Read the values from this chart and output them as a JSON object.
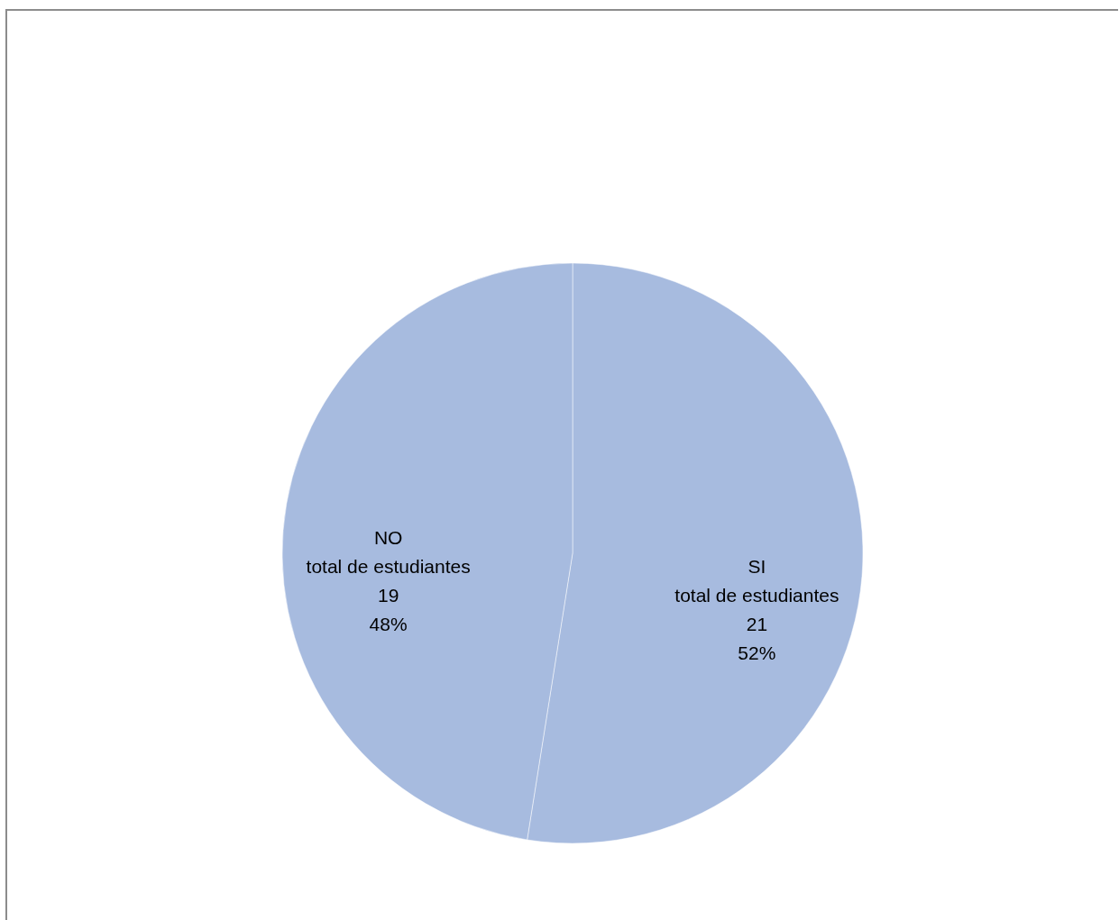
{
  "chart_data": {
    "type": "pie",
    "categories": [
      "SI",
      "NO"
    ],
    "series": [
      {
        "name": "total de estudiantes",
        "values": [
          21,
          19
        ],
        "value_labels": [
          "21\n52%",
          "19\n48%"
        ]
      }
    ],
    "colors": [
      "#a7bbdf",
      "#a7bbdf"
    ]
  }
}
